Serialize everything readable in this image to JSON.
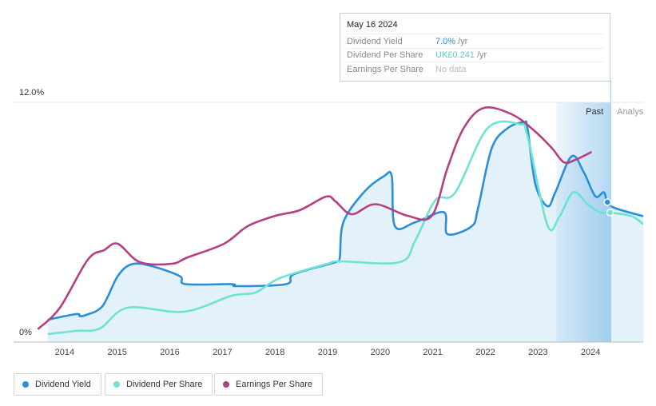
{
  "chart_data": {
    "type": "line",
    "xlim": [
      2013.03,
      2025.0
    ],
    "xticks": [
      2014,
      2015,
      2016,
      2017,
      2018,
      2019,
      2020,
      2021,
      2022,
      2023,
      2024
    ],
    "ylim": [
      0,
      12
    ],
    "yticks": [
      {
        "value": 0,
        "label": "0%"
      },
      {
        "value": 12,
        "label": "12.0%"
      }
    ],
    "grid": true,
    "highlight_x": [
      2023.35,
      2024.38
    ],
    "highlight_labels": [
      "Past",
      "Analys"
    ],
    "series": [
      {
        "name": "Dividend Yield",
        "color": "#2a8fdb",
        "fill": true,
        "x": [
          2013.68,
          2014.22,
          2014.29,
          2014.41,
          2014.72,
          2015.01,
          2015.28,
          2015.66,
          2016.19,
          2016.3,
          2017.18,
          2017.27,
          2018.21,
          2018.36,
          2019.15,
          2019.23,
          2019.3,
          2019.69,
          2020.07,
          2020.22,
          2020.28,
          2020.67,
          2021.21,
          2021.28,
          2021.74,
          2021.86,
          2022.12,
          2022.42,
          2022.73,
          2022.8,
          2022.95,
          2023.18,
          2023.33,
          2023.64,
          2023.87,
          2024.09,
          2024.25,
          2024.32,
          2024.47,
          2025.0
        ],
        "values": [
          1.12,
          1.4,
          1.3,
          1.36,
          1.8,
          3.3,
          3.9,
          3.8,
          3.3,
          2.9,
          2.9,
          2.8,
          2.9,
          3.4,
          4.0,
          4.2,
          6.0,
          7.5,
          8.3,
          8.3,
          5.8,
          6.0,
          6.5,
          5.4,
          5.8,
          6.7,
          9.7,
          10.7,
          11.0,
          10.7,
          7.9,
          6.8,
          7.5,
          9.3,
          8.5,
          7.3,
          7.5,
          7.0,
          6.7,
          6.3
        ]
      },
      {
        "name": "Dividend Per Share",
        "color": "#6de3d2",
        "x": [
          2013.68,
          2014.22,
          2014.67,
          2015.2,
          2016.27,
          2017.18,
          2017.63,
          2018.09,
          2019.0,
          2019.23,
          2020.37,
          2020.67,
          2021.05,
          2021.43,
          2022.04,
          2022.65,
          2022.8,
          2023.18,
          2023.41,
          2023.67,
          2023.94,
          2024.17,
          2024.37,
          2024.78,
          2025.0
        ],
        "values": [
          0.4,
          0.56,
          0.68,
          1.72,
          1.52,
          2.32,
          2.48,
          3.2,
          3.92,
          4.04,
          4.0,
          5.1,
          7.1,
          7.5,
          10.7,
          10.9,
          10.3,
          5.84,
          6.3,
          7.5,
          6.9,
          6.5,
          6.48,
          6.3,
          5.9
        ]
      },
      {
        "name": "Earnings Per Share",
        "color": "#b63f82",
        "x": [
          2013.49,
          2013.91,
          2014.44,
          2014.75,
          2015.01,
          2015.43,
          2016.04,
          2016.34,
          2017.03,
          2017.48,
          2018.01,
          2018.47,
          2018.97,
          2019.15,
          2019.46,
          2019.91,
          2020.52,
          2020.98,
          2021.28,
          2021.59,
          2021.97,
          2022.5,
          2022.92,
          2023.26,
          2023.49,
          2023.71,
          2024.02
        ],
        "values": [
          0.64,
          1.72,
          4.12,
          4.6,
          4.92,
          4.0,
          3.92,
          4.24,
          4.92,
          5.8,
          6.32,
          6.6,
          7.28,
          7.04,
          6.4,
          6.9,
          6.32,
          6.32,
          8.72,
          10.72,
          11.72,
          11.4,
          10.6,
          9.72,
          9.0,
          9.12,
          9.52
        ]
      }
    ],
    "tooltip": {
      "date": "May 16 2024",
      "rows": [
        {
          "label": "Dividend Yield",
          "value": "7.0%",
          "unit": "/yr",
          "color": "#2a8fdb"
        },
        {
          "label": "Dividend Per Share",
          "value": "UK£0.241",
          "unit": "/yr",
          "color": "#4fd3c0"
        },
        {
          "label": "Earnings Per Share",
          "value": "No data",
          "color": "#bbbbbb"
        }
      ]
    }
  }
}
